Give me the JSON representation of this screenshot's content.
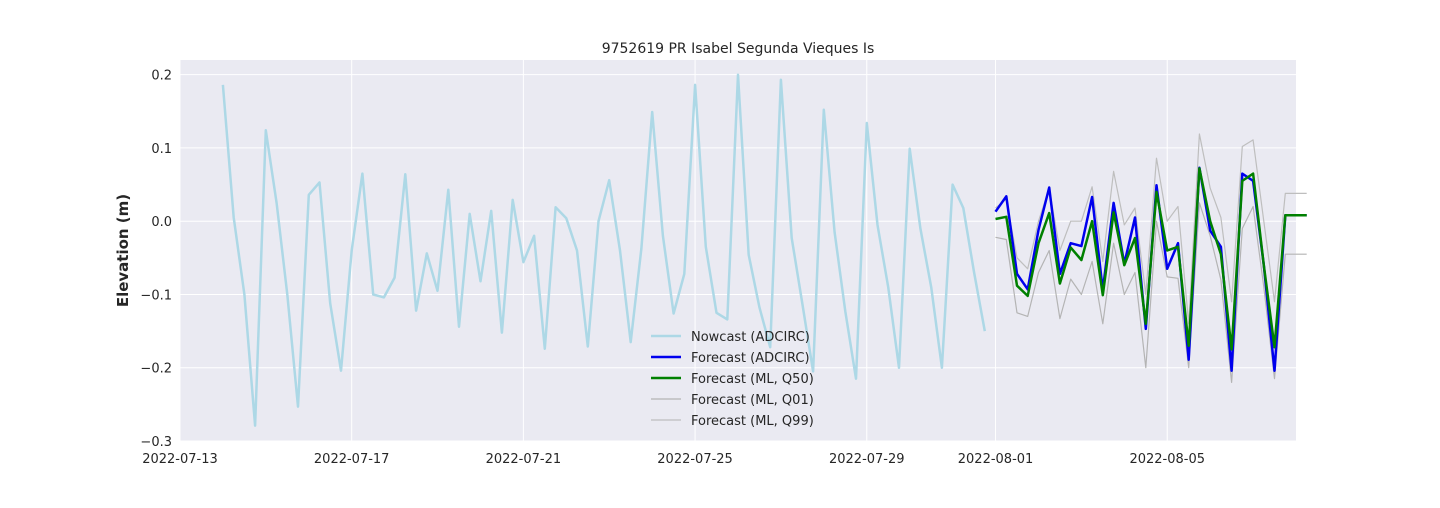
{
  "chart_data": {
    "type": "line",
    "title": "9752619 PR Isabel Segunda Vieques Is",
    "xlabel": "",
    "ylabel": "Elevation (m)",
    "xlim": [
      "2022-07-13T00:00",
      "2022-08-08T00:00"
    ],
    "ylim": [
      -0.3,
      0.22
    ],
    "x_ticks": [
      "2022-07-13",
      "2022-07-17",
      "2022-07-21",
      "2022-07-25",
      "2022-07-29",
      "2022-08-01",
      "2022-08-05"
    ],
    "y_ticks": [
      0.2,
      0.1,
      0.0,
      -0.1,
      -0.2,
      -0.3
    ],
    "y_tick_labels": [
      "0.2",
      "0.1",
      "0.0",
      "−0.1",
      "−0.2",
      "−0.3"
    ],
    "grid": true,
    "legend_position": "bottom-center",
    "background": "#eaeaf2",
    "series": [
      {
        "name": "Nowcast (ADCIRC)",
        "color": "#add8e6",
        "x": [
          "2022-07-14T00:00",
          "2022-07-14T06:00",
          "2022-07-14T12:00",
          "2022-07-14T18:00",
          "2022-07-15T00:00",
          "2022-07-15T06:00",
          "2022-07-15T12:00",
          "2022-07-15T18:00",
          "2022-07-16T00:00",
          "2022-07-16T06:00",
          "2022-07-16T12:00",
          "2022-07-16T18:00",
          "2022-07-17T00:00",
          "2022-07-17T06:00",
          "2022-07-17T12:00",
          "2022-07-17T18:00",
          "2022-07-18T00:00",
          "2022-07-18T06:00",
          "2022-07-18T12:00",
          "2022-07-18T18:00",
          "2022-07-19T00:00",
          "2022-07-19T06:00",
          "2022-07-19T12:00",
          "2022-07-19T18:00",
          "2022-07-20T00:00",
          "2022-07-20T06:00",
          "2022-07-20T12:00",
          "2022-07-20T18:00",
          "2022-07-21T00:00",
          "2022-07-21T06:00",
          "2022-07-21T12:00",
          "2022-07-21T18:00",
          "2022-07-22T00:00",
          "2022-07-22T06:00",
          "2022-07-22T12:00",
          "2022-07-22T18:00",
          "2022-07-23T00:00",
          "2022-07-23T06:00",
          "2022-07-23T12:00",
          "2022-07-23T18:00",
          "2022-07-24T00:00",
          "2022-07-24T06:00",
          "2022-07-24T12:00",
          "2022-07-24T18:00",
          "2022-07-25T00:00",
          "2022-07-25T06:00",
          "2022-07-25T12:00",
          "2022-07-25T18:00",
          "2022-07-26T00:00",
          "2022-07-26T06:00",
          "2022-07-26T12:00",
          "2022-07-26T18:00",
          "2022-07-27T00:00",
          "2022-07-27T06:00",
          "2022-07-27T12:00",
          "2022-07-27T18:00",
          "2022-07-28T00:00",
          "2022-07-28T06:00",
          "2022-07-28T12:00",
          "2022-07-28T18:00",
          "2022-07-29T00:00",
          "2022-07-29T06:00",
          "2022-07-29T12:00",
          "2022-07-29T18:00",
          "2022-07-30T00:00",
          "2022-07-30T06:00",
          "2022-07-30T12:00",
          "2022-07-30T18:00",
          "2022-07-31T00:00",
          "2022-07-31T06:00",
          "2022-07-31T12:00",
          "2022-07-31T18:00"
        ],
        "y": [
          0.186,
          0.005,
          -0.1,
          -0.279,
          0.124,
          0.025,
          -0.1,
          -0.253,
          0.036,
          0.053,
          -0.112,
          -0.204,
          -0.04,
          0.065,
          -0.1,
          -0.104,
          -0.077,
          0.064,
          -0.122,
          -0.044,
          -0.095,
          0.043,
          -0.144,
          0.01,
          -0.082,
          0.014,
          -0.152,
          0.029,
          -0.056,
          -0.02,
          -0.174,
          0.019,
          0.004,
          -0.04,
          -0.171,
          0.0,
          0.056,
          -0.04,
          -0.165,
          -0.037,
          0.149,
          -0.02,
          -0.126,
          -0.072,
          0.186,
          -0.035,
          -0.125,
          -0.134,
          0.2,
          -0.046,
          -0.118,
          -0.172,
          0.193,
          -0.023,
          -0.113,
          -0.205,
          0.152,
          -0.015,
          -0.123,
          -0.215,
          0.134,
          -0.005,
          -0.09,
          -0.2,
          0.099,
          -0.01,
          -0.09,
          -0.2,
          0.05,
          0.018,
          -0.07,
          -0.15
        ]
      },
      {
        "name": "Forecast (ADCIRC)",
        "color": "#0000ee",
        "x": [
          "2022-08-01T00:00",
          "2022-08-01T06:00",
          "2022-08-01T12:00",
          "2022-08-01T18:00",
          "2022-08-02T00:00",
          "2022-08-02T06:00",
          "2022-08-02T12:00",
          "2022-08-02T18:00",
          "2022-08-03T00:00",
          "2022-08-03T06:00",
          "2022-08-03T12:00",
          "2022-08-03T18:00",
          "2022-08-04T00:00",
          "2022-08-04T06:00",
          "2022-08-04T12:00",
          "2022-08-04T18:00",
          "2022-08-05T00:00",
          "2022-08-05T06:00",
          "2022-08-05T12:00",
          "2022-08-05T18:00",
          "2022-08-06T00:00",
          "2022-08-06T06:00",
          "2022-08-06T12:00",
          "2022-08-06T18:00",
          "2022-08-07T00:00",
          "2022-08-07T06:00",
          "2022-08-07T12:00",
          "2022-08-07T18:00",
          "2022-08-08T00:00",
          "2022-08-08T06:00"
        ],
        "y": [
          0.013,
          0.034,
          -0.072,
          -0.093,
          -0.012,
          0.046,
          -0.072,
          -0.03,
          -0.034,
          0.033,
          -0.094,
          0.025,
          -0.058,
          0.005,
          -0.147,
          0.049,
          -0.065,
          -0.03,
          -0.189,
          0.073,
          -0.013,
          -0.035,
          -0.204,
          0.065,
          0.055,
          -0.06,
          -0.204,
          0.008,
          0.008,
          0.008
        ]
      },
      {
        "name": "Forecast (ML, Q50)",
        "color": "#008000",
        "x": [
          "2022-08-01T00:00",
          "2022-08-01T06:00",
          "2022-08-01T12:00",
          "2022-08-01T18:00",
          "2022-08-02T00:00",
          "2022-08-02T06:00",
          "2022-08-02T12:00",
          "2022-08-02T18:00",
          "2022-08-03T00:00",
          "2022-08-03T06:00",
          "2022-08-03T12:00",
          "2022-08-03T18:00",
          "2022-08-04T00:00",
          "2022-08-04T06:00",
          "2022-08-04T12:00",
          "2022-08-04T18:00",
          "2022-08-05T00:00",
          "2022-08-05T06:00",
          "2022-08-05T12:00",
          "2022-08-05T18:00",
          "2022-08-06T00:00",
          "2022-08-06T06:00",
          "2022-08-06T12:00",
          "2022-08-06T18:00",
          "2022-08-07T00:00",
          "2022-08-07T06:00",
          "2022-08-07T12:00",
          "2022-08-07T18:00",
          "2022-08-08T00:00",
          "2022-08-08T06:00"
        ],
        "y": [
          0.003,
          0.006,
          -0.088,
          -0.102,
          -0.03,
          0.011,
          -0.085,
          -0.036,
          -0.053,
          0.0,
          -0.101,
          0.012,
          -0.06,
          -0.023,
          -0.14,
          0.04,
          -0.04,
          -0.035,
          -0.17,
          0.072,
          0.0,
          -0.045,
          -0.175,
          0.055,
          0.065,
          -0.06,
          -0.172,
          0.008,
          0.008,
          0.008
        ]
      },
      {
        "name": "Forecast (ML, Q01)",
        "color": "#b4b4b4",
        "x": [
          "2022-08-01T00:00",
          "2022-08-01T06:00",
          "2022-08-01T12:00",
          "2022-08-01T18:00",
          "2022-08-02T00:00",
          "2022-08-02T06:00",
          "2022-08-02T12:00",
          "2022-08-02T18:00",
          "2022-08-03T00:00",
          "2022-08-03T06:00",
          "2022-08-03T12:00",
          "2022-08-03T18:00",
          "2022-08-04T00:00",
          "2022-08-04T06:00",
          "2022-08-04T12:00",
          "2022-08-04T18:00",
          "2022-08-05T00:00",
          "2022-08-05T06:00",
          "2022-08-05T12:00",
          "2022-08-05T18:00",
          "2022-08-06T00:00",
          "2022-08-06T06:00",
          "2022-08-06T12:00",
          "2022-08-06T18:00",
          "2022-08-07T00:00",
          "2022-08-07T06:00",
          "2022-08-07T12:00",
          "2022-08-07T18:00",
          "2022-08-08T00:00",
          "2022-08-08T06:00"
        ],
        "y": [
          -0.022,
          -0.025,
          -0.125,
          -0.13,
          -0.07,
          -0.04,
          -0.133,
          -0.079,
          -0.1,
          -0.055,
          -0.14,
          -0.03,
          -0.1,
          -0.07,
          -0.2,
          0.0,
          -0.076,
          -0.078,
          -0.2,
          0.025,
          -0.02,
          -0.08,
          -0.22,
          -0.01,
          0.02,
          -0.09,
          -0.215,
          -0.045,
          -0.045,
          -0.045
        ]
      },
      {
        "name": "Forecast (ML, Q99)",
        "color": "#bebebe",
        "x": [
          "2022-08-01T00:00",
          "2022-08-01T06:00",
          "2022-08-01T12:00",
          "2022-08-01T18:00",
          "2022-08-02T00:00",
          "2022-08-02T06:00",
          "2022-08-02T12:00",
          "2022-08-02T18:00",
          "2022-08-03T00:00",
          "2022-08-03T06:00",
          "2022-08-03T12:00",
          "2022-08-03T18:00",
          "2022-08-04T00:00",
          "2022-08-04T06:00",
          "2022-08-04T12:00",
          "2022-08-04T18:00",
          "2022-08-05T00:00",
          "2022-08-05T06:00",
          "2022-08-05T12:00",
          "2022-08-05T18:00",
          "2022-08-06T00:00",
          "2022-08-06T06:00",
          "2022-08-06T12:00",
          "2022-08-06T18:00",
          "2022-08-07T00:00",
          "2022-08-07T06:00",
          "2022-08-07T12:00",
          "2022-08-07T18:00",
          "2022-08-08T00:00",
          "2022-08-08T06:00"
        ],
        "y": [
          0.018,
          0.03,
          -0.05,
          -0.065,
          0.0,
          0.045,
          -0.04,
          0.0,
          0.0,
          0.047,
          -0.055,
          0.068,
          -0.005,
          0.018,
          -0.1,
          0.086,
          0.0,
          0.02,
          -0.14,
          0.119,
          0.045,
          0.005,
          -0.11,
          0.102,
          0.111,
          0.0,
          -0.11,
          0.038,
          0.038,
          0.038
        ]
      }
    ]
  }
}
